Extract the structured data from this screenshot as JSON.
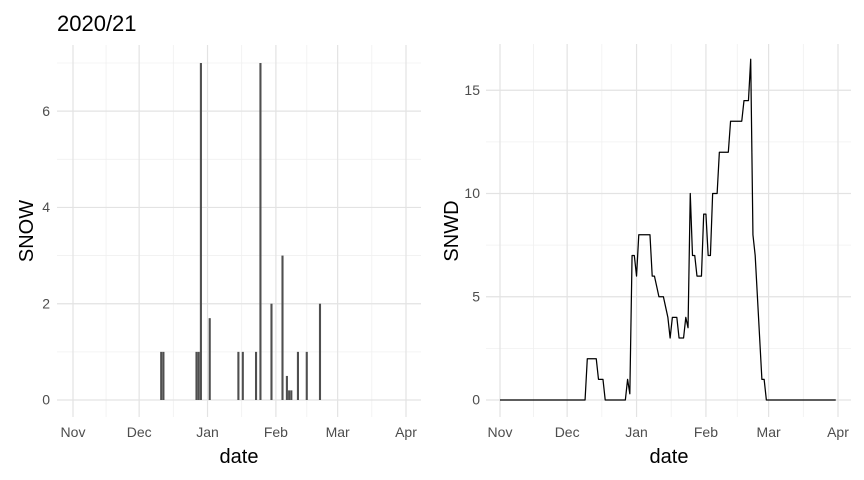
{
  "figure": {
    "title": "2020/21",
    "background": "#ffffff",
    "colors": {
      "bar_fill": "#4f4f4f",
      "line_stroke": "#000000",
      "grid_major": "#e3e3e3",
      "grid_minor": "#f0f0f0",
      "tick_label": "#4d4d4d",
      "axis_title": "#000000"
    }
  },
  "chart_data": [
    {
      "type": "bar",
      "panel": "left",
      "title": "2020/21",
      "xlabel": "date",
      "ylabel": "SNOW",
      "legend": "none",
      "grid": "on",
      "x_tick_labels": [
        "Nov",
        "Dec",
        "Jan",
        "Feb",
        "Mar",
        "Apr"
      ],
      "x_tick_days": [
        0,
        30,
        61,
        92,
        120,
        151
      ],
      "x_minor_days": [
        15,
        45.5,
        76.5,
        106,
        135.5
      ],
      "x_domain_days": 151,
      "y_ticks": [
        0,
        2,
        4,
        6
      ],
      "y_minor_ticks": [
        1,
        3,
        5,
        7
      ],
      "ylim": [
        0,
        7
      ],
      "bars": [
        {
          "date": "Dec 11",
          "day": 40,
          "value": 1
        },
        {
          "date": "Dec 12",
          "day": 41,
          "value": 1
        },
        {
          "date": "Dec 27",
          "day": 56,
          "value": 1
        },
        {
          "date": "Dec 28",
          "day": 57,
          "value": 1
        },
        {
          "date": "Dec 29",
          "day": 58,
          "value": 7
        },
        {
          "date": "Jan 2",
          "day": 62,
          "value": 1.7
        },
        {
          "date": "Jan 15",
          "day": 75,
          "value": 1
        },
        {
          "date": "Jan 17",
          "day": 77,
          "value": 1
        },
        {
          "date": "Jan 23",
          "day": 83,
          "value": 1
        },
        {
          "date": "Jan 25",
          "day": 85,
          "value": 7
        },
        {
          "date": "Jan 30",
          "day": 90,
          "value": 2
        },
        {
          "date": "Feb 4",
          "day": 95,
          "value": 3
        },
        {
          "date": "Feb 6",
          "day": 97,
          "value": 0.5
        },
        {
          "date": "Feb 7",
          "day": 98,
          "value": 0.2
        },
        {
          "date": "Feb 8",
          "day": 99,
          "value": 0.2
        },
        {
          "date": "Feb 11",
          "day": 102,
          "value": 1
        },
        {
          "date": "Feb 15",
          "day": 106,
          "value": 1
        },
        {
          "date": "Feb 21",
          "day": 112,
          "value": 2
        }
      ]
    },
    {
      "type": "line",
      "panel": "right",
      "xlabel": "date",
      "ylabel": "SNWD",
      "legend": "none",
      "grid": "on",
      "x_tick_labels": [
        "Nov",
        "Dec",
        "Jan",
        "Feb",
        "Mar",
        "Apr"
      ],
      "x_tick_days": [
        0,
        30,
        61,
        92,
        120,
        151
      ],
      "x_minor_days": [
        15,
        45.5,
        76.5,
        106,
        135.5
      ],
      "x_domain_days": 151,
      "y_ticks": [
        0,
        5,
        10,
        15
      ],
      "y_minor_ticks": [
        2.5,
        7.5,
        12.5
      ],
      "ylim": [
        0,
        16.5
      ],
      "points_day_value": [
        [
          0,
          0
        ],
        [
          38,
          0
        ],
        [
          39,
          2
        ],
        [
          43,
          2
        ],
        [
          44,
          1
        ],
        [
          46,
          1
        ],
        [
          47,
          0
        ],
        [
          56,
          0
        ],
        [
          57,
          1
        ],
        [
          58,
          0.3
        ],
        [
          59,
          7
        ],
        [
          60,
          7
        ],
        [
          61,
          6
        ],
        [
          62,
          8
        ],
        [
          67,
          8
        ],
        [
          68,
          6
        ],
        [
          69,
          6
        ],
        [
          70,
          5.5
        ],
        [
          71,
          5
        ],
        [
          73,
          5
        ],
        [
          74,
          4.5
        ],
        [
          75,
          4
        ],
        [
          76,
          3
        ],
        [
          77,
          4
        ],
        [
          79,
          4
        ],
        [
          80,
          3
        ],
        [
          82,
          3
        ],
        [
          83,
          4
        ],
        [
          84,
          3.5
        ],
        [
          85,
          10
        ],
        [
          86,
          7
        ],
        [
          87,
          7
        ],
        [
          88,
          6
        ],
        [
          90,
          6
        ],
        [
          91,
          9
        ],
        [
          92,
          9
        ],
        [
          93,
          7
        ],
        [
          94,
          7
        ],
        [
          95,
          10
        ],
        [
          97,
          10
        ],
        [
          98,
          12
        ],
        [
          102,
          12
        ],
        [
          103,
          13.5
        ],
        [
          108,
          13.5
        ],
        [
          109,
          14.5
        ],
        [
          111,
          14.5
        ],
        [
          112,
          16.5
        ],
        [
          113,
          8
        ],
        [
          114,
          7
        ],
        [
          117,
          1
        ],
        [
          118,
          1
        ],
        [
          119,
          0
        ],
        [
          150,
          0
        ]
      ]
    }
  ]
}
